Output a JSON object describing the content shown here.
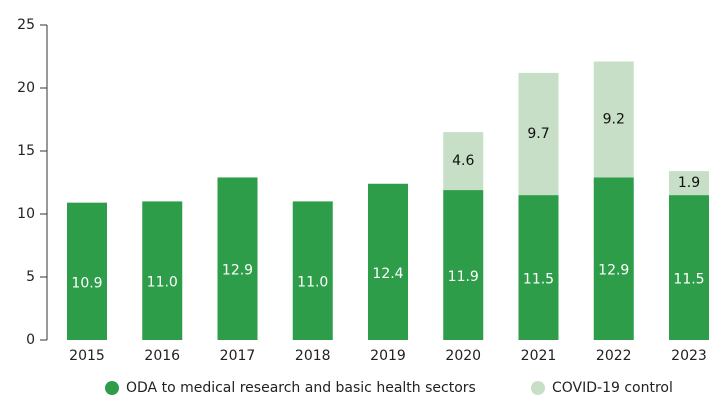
{
  "chart_data": {
    "type": "stacked_bar",
    "categories": [
      "2015",
      "2016",
      "2017",
      "2018",
      "2019",
      "2020",
      "2021",
      "2022",
      "2023"
    ],
    "series": [
      {
        "name": "ODA to medical research and basic health sectors",
        "color": "#2e9d4a",
        "values": [
          10.9,
          11.0,
          12.9,
          11.0,
          12.4,
          11.9,
          11.5,
          12.9,
          11.5
        ],
        "value_labels": [
          "10.9",
          "11.0",
          "12.9",
          "11.0",
          "12.4",
          "11.9",
          "11.5",
          "12.9",
          "11.5"
        ]
      },
      {
        "name": "COVID-19 control",
        "color": "#c6dfc6",
        "values": [
          null,
          null,
          null,
          null,
          null,
          4.6,
          9.7,
          9.2,
          1.9
        ]
      }
    ],
    "ylim": [
      0,
      25
    ],
    "yticks": [
      0,
      5,
      10,
      15,
      20,
      25
    ],
    "grid": false,
    "legend": "bottom"
  }
}
